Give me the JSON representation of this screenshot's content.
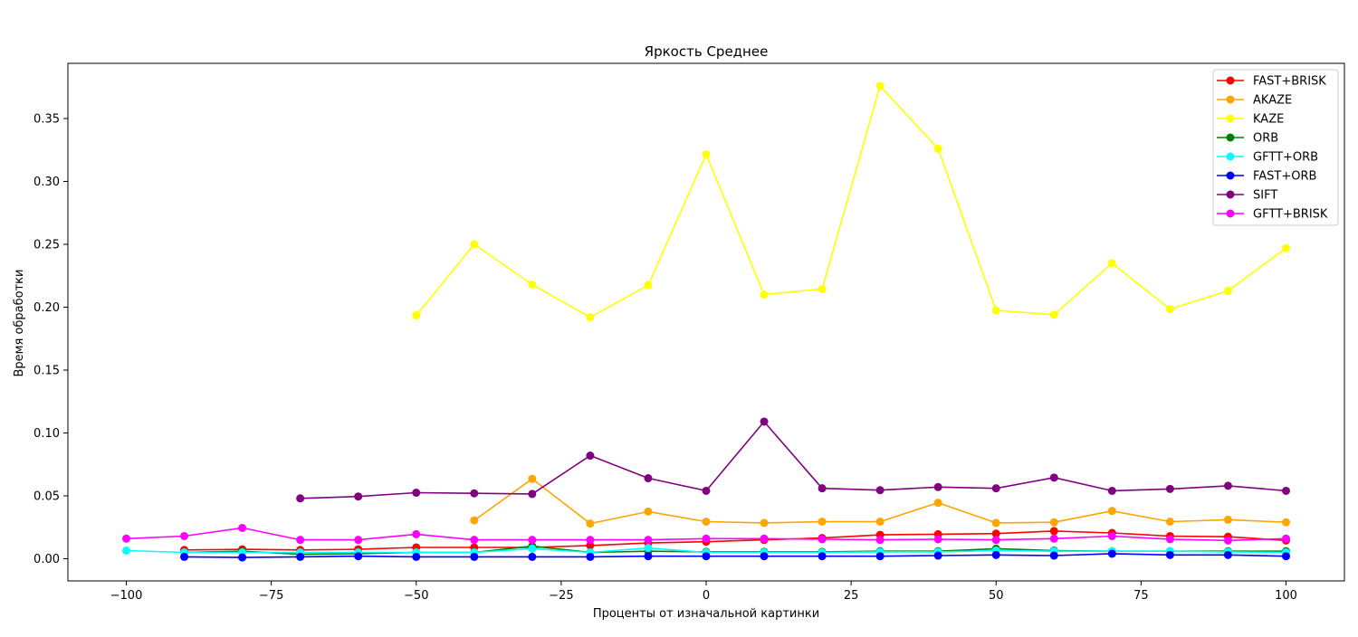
{
  "chart_data": {
    "type": "line",
    "title": "Яркость Среднее",
    "xlabel": "Проценты от изначальной картинки",
    "ylabel": "Время обработки",
    "xlim": [
      -110,
      110
    ],
    "ylim": [
      -0.018,
      0.39
    ],
    "xticks": [
      -100,
      -75,
      -50,
      -25,
      0,
      25,
      50,
      75,
      100
    ],
    "xtick_labels": [
      "−100",
      "−75",
      "−50",
      "−25",
      "0",
      "25",
      "50",
      "75",
      "100"
    ],
    "yticks": [
      0.0,
      0.05,
      0.1,
      0.15,
      0.2,
      0.25,
      0.3,
      0.35
    ],
    "ytick_labels": [
      "0.00",
      "0.05",
      "0.10",
      "0.15",
      "0.20",
      "0.25",
      "0.30",
      "0.35"
    ],
    "grid": false,
    "legend_position": "top-right",
    "series": [
      {
        "name": "FAST+BRISK",
        "color": "#ff0000",
        "x": [
          -90,
          -80,
          -70,
          -60,
          -50,
          -40,
          -30,
          -20,
          -10,
          0,
          10,
          20,
          30,
          40,
          50,
          60,
          70,
          80,
          90,
          100
        ],
        "y": [
          0.007,
          0.0075,
          0.007,
          0.0075,
          0.009,
          0.009,
          0.009,
          0.0105,
          0.0125,
          0.0135,
          0.015,
          0.0165,
          0.019,
          0.0195,
          0.02,
          0.022,
          0.0205,
          0.018,
          0.0175,
          0.0145
        ]
      },
      {
        "name": "AKAZE",
        "color": "#ffa500",
        "x": [
          -40,
          -30,
          -20,
          -10,
          0,
          10,
          20,
          30,
          40,
          50,
          60,
          70,
          80,
          90,
          100
        ],
        "y": [
          0.0305,
          0.0635,
          0.028,
          0.0375,
          0.0295,
          0.0285,
          0.0295,
          0.0295,
          0.0445,
          0.0285,
          0.029,
          0.038,
          0.0295,
          0.031,
          0.029
        ]
      },
      {
        "name": "KAZE",
        "color": "#ffff00",
        "x": [
          -50,
          -40,
          -30,
          -20,
          -10,
          0,
          10,
          20,
          30,
          40,
          50,
          60,
          70,
          80,
          90,
          100
        ],
        "y": [
          0.1935,
          0.25,
          0.218,
          0.192,
          0.2175,
          0.3215,
          0.21,
          0.2145,
          0.376,
          0.326,
          0.1975,
          0.194,
          0.235,
          0.1985,
          0.213,
          0.247
        ]
      },
      {
        "name": "ORB",
        "color": "#008000",
        "x": [
          -90,
          -80,
          -70,
          -60,
          -50,
          -40,
          -30,
          -20,
          -10,
          0,
          10,
          20,
          30,
          40,
          50,
          60,
          70,
          80,
          90,
          100
        ],
        "y": [
          0.005,
          0.006,
          0.0035,
          0.004,
          0.005,
          0.005,
          0.01,
          0.005,
          0.006,
          0.0055,
          0.0055,
          0.0055,
          0.006,
          0.006,
          0.008,
          0.0065,
          0.006,
          0.006,
          0.006,
          0.006
        ]
      },
      {
        "name": "GFTT+ORB",
        "color": "#00ffff",
        "x": [
          -100,
          -90,
          -80,
          -70,
          -60,
          -50,
          -40,
          -30,
          -20,
          -10,
          0,
          10,
          20,
          30,
          40,
          50,
          60,
          70,
          80,
          90,
          100
        ],
        "y": [
          0.0065,
          0.005,
          0.005,
          0.005,
          0.005,
          0.005,
          0.005,
          0.008,
          0.005,
          0.0085,
          0.005,
          0.005,
          0.005,
          0.0055,
          0.0055,
          0.0065,
          0.006,
          0.006,
          0.006,
          0.0055,
          0.005
        ]
      },
      {
        "name": "FAST+ORB",
        "color": "#0000ff",
        "x": [
          -90,
          -80,
          -70,
          -60,
          -50,
          -40,
          -30,
          -20,
          -10,
          0,
          10,
          20,
          30,
          40,
          50,
          60,
          70,
          80,
          90,
          100
        ],
        "y": [
          0.0015,
          0.001,
          0.0015,
          0.002,
          0.0015,
          0.0015,
          0.0015,
          0.0015,
          0.002,
          0.002,
          0.002,
          0.002,
          0.002,
          0.0025,
          0.003,
          0.0025,
          0.004,
          0.003,
          0.003,
          0.002
        ]
      },
      {
        "name": "SIFT",
        "color": "#800080",
        "x": [
          -70,
          -60,
          -50,
          -40,
          -30,
          -20,
          -10,
          0,
          10,
          20,
          30,
          40,
          50,
          60,
          70,
          80,
          90,
          100
        ],
        "y": [
          0.048,
          0.0495,
          0.0525,
          0.052,
          0.0515,
          0.082,
          0.064,
          0.054,
          0.109,
          0.056,
          0.0545,
          0.057,
          0.056,
          0.0645,
          0.054,
          0.0555,
          0.058,
          0.054
        ]
      },
      {
        "name": "GFTT+BRISK",
        "color": "#ff00ff",
        "x": [
          -100,
          -90,
          -80,
          -70,
          -60,
          -50,
          -40,
          -30,
          -20,
          -10,
          0,
          10,
          20,
          30,
          40,
          50,
          60,
          70,
          80,
          90,
          100
        ],
        "y": [
          0.016,
          0.018,
          0.0245,
          0.015,
          0.015,
          0.0195,
          0.015,
          0.015,
          0.015,
          0.015,
          0.016,
          0.016,
          0.0155,
          0.015,
          0.0155,
          0.015,
          0.016,
          0.018,
          0.0155,
          0.0145,
          0.016
        ]
      }
    ]
  }
}
